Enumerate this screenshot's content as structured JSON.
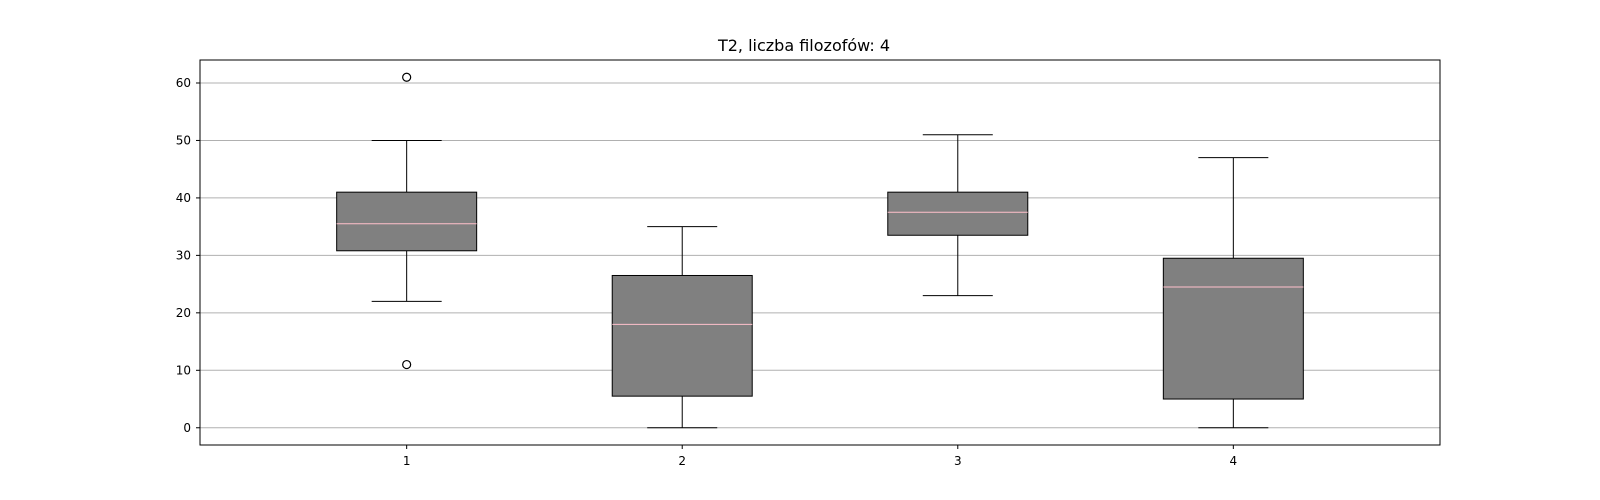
{
  "chart_data": {
    "type": "box",
    "title": "T2, liczba filozofów: 4",
    "xlabel": "",
    "ylabel": "",
    "categories": [
      "1",
      "2",
      "3",
      "4"
    ],
    "ylim": [
      -3,
      64
    ],
    "yticks": [
      0,
      10,
      20,
      30,
      40,
      50,
      60
    ],
    "grid": "horizontal",
    "colors": {
      "box_fill": "#808080",
      "box_edge": "#000000",
      "median": "#ffc0cb",
      "grid": "#b0b0b0"
    },
    "boxes": [
      {
        "category": "1",
        "whisker_low": 22,
        "q1": 30.8,
        "median": 35.5,
        "q3": 41,
        "whisker_high": 50,
        "outliers": [
          11,
          61
        ]
      },
      {
        "category": "2",
        "whisker_low": 0,
        "q1": 5.5,
        "median": 18,
        "q3": 26.5,
        "whisker_high": 35,
        "outliers": []
      },
      {
        "category": "3",
        "whisker_low": 23,
        "q1": 33.5,
        "median": 37.5,
        "q3": 41,
        "whisker_high": 51,
        "outliers": []
      },
      {
        "category": "4",
        "whisker_low": 0,
        "q1": 5,
        "median": 24.5,
        "q3": 29.5,
        "whisker_high": 47,
        "outliers": []
      }
    ]
  }
}
